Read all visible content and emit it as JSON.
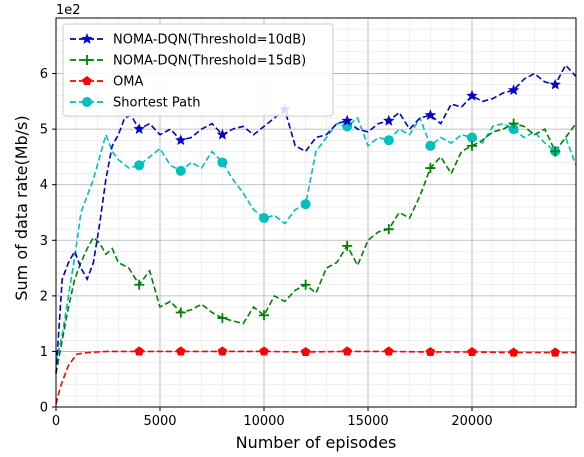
{
  "chart_data": {
    "type": "line",
    "title": "",
    "xlabel": "Number of episodes",
    "ylabel": "Sum of data rate(Mb/s)",
    "y_scale_note": "1e2",
    "xlim": [
      0,
      25000
    ],
    "ylim": [
      0,
      7
    ],
    "x_ticks": [
      0,
      5000,
      10000,
      15000,
      20000
    ],
    "x_tick_labels": [
      "0",
      "5000",
      "10000",
      "15000",
      "20000"
    ],
    "y_ticks": [
      0,
      1,
      2,
      3,
      4,
      5,
      6
    ],
    "y_tick_labels": [
      "0",
      "1",
      "2",
      "3",
      "4",
      "5",
      "6"
    ],
    "grid": true,
    "legend_position": "top-left",
    "series": [
      {
        "name": "NOMA-DQN(Threshold=10dB)",
        "color": "#0000cc",
        "marker": "star",
        "x": [
          0,
          300,
          600,
          900,
          1200,
          1500,
          1800,
          2100,
          2400,
          2700,
          3000,
          3300,
          3600,
          4000,
          4500,
          5000,
          5500,
          6000,
          6500,
          7000,
          7500,
          8000,
          8500,
          9000,
          9500,
          10000,
          10500,
          11000,
          11500,
          12000,
          12500,
          13000,
          13500,
          14000,
          14500,
          15000,
          15500,
          16000,
          16500,
          17000,
          17500,
          18000,
          18500,
          19000,
          19500,
          20000,
          20500,
          21000,
          21500,
          22000,
          22500,
          23000,
          23500,
          24000,
          24500,
          25000
        ],
        "y": [
          0.6,
          2.3,
          2.6,
          2.8,
          2.5,
          2.3,
          2.6,
          3.3,
          4.1,
          4.7,
          4.9,
          5.2,
          5.25,
          5.0,
          5.1,
          4.9,
          5.0,
          4.8,
          4.85,
          5.0,
          5.1,
          4.9,
          5.0,
          5.05,
          4.9,
          5.05,
          5.2,
          5.35,
          4.7,
          4.6,
          4.85,
          4.9,
          5.1,
          5.15,
          5.0,
          4.95,
          5.1,
          5.15,
          5.3,
          5.0,
          5.2,
          5.25,
          5.1,
          5.45,
          5.4,
          5.6,
          5.5,
          5.55,
          5.65,
          5.7,
          5.9,
          6.0,
          5.85,
          5.8,
          6.15,
          5.95
        ],
        "marker_x": [
          4000,
          6000,
          8000,
          11000,
          14000,
          16000,
          18000,
          20000,
          22000,
          24000
        ],
        "marker_y": [
          5.0,
          4.8,
          4.9,
          5.35,
          5.15,
          5.15,
          5.25,
          5.6,
          5.7,
          5.8
        ]
      },
      {
        "name": "NOMA-DQN(Threshold=15dB)",
        "color": "#008000",
        "marker": "plus",
        "x": [
          0,
          300,
          600,
          900,
          1200,
          1500,
          1800,
          2100,
          2400,
          2700,
          3000,
          3500,
          4000,
          4500,
          5000,
          5500,
          6000,
          6500,
          7000,
          7500,
          8000,
          8500,
          9000,
          9500,
          10000,
          10500,
          11000,
          11500,
          12000,
          12500,
          13000,
          13500,
          14000,
          14500,
          15000,
          15500,
          16000,
          16500,
          17000,
          17500,
          18000,
          18500,
          19000,
          19500,
          20000,
          20500,
          21000,
          21500,
          22000,
          22500,
          23000,
          23500,
          24000,
          24500,
          25000
        ],
        "y": [
          0.6,
          1.2,
          1.8,
          2.3,
          2.6,
          2.85,
          3.05,
          2.95,
          2.75,
          2.85,
          2.6,
          2.5,
          2.2,
          2.45,
          1.8,
          1.9,
          1.7,
          1.75,
          1.85,
          1.7,
          1.6,
          1.55,
          1.5,
          1.8,
          1.65,
          2.0,
          1.9,
          2.1,
          2.2,
          2.05,
          2.5,
          2.6,
          2.9,
          2.55,
          3.0,
          3.15,
          3.2,
          3.5,
          3.4,
          3.8,
          4.3,
          4.5,
          4.2,
          4.6,
          4.7,
          4.8,
          4.95,
          5.0,
          5.1,
          5.05,
          4.9,
          5.0,
          4.6,
          4.85,
          5.1
        ],
        "marker_x": [
          4000,
          6000,
          8000,
          10000,
          12000,
          14000,
          16000,
          18000,
          20000,
          22000,
          24000
        ],
        "marker_y": [
          2.2,
          1.7,
          1.6,
          1.65,
          2.2,
          2.9,
          3.2,
          4.3,
          4.7,
          5.1,
          4.6
        ]
      },
      {
        "name": "OMA",
        "color": "#ff0000",
        "marker": "pentagon",
        "x": [
          0,
          200,
          400,
          600,
          800,
          1000,
          1300,
          1600,
          2000,
          2500,
          3000,
          4000,
          5000,
          6000,
          8000,
          10000,
          12000,
          14000,
          16000,
          18000,
          20000,
          22000,
          24000,
          25000
        ],
        "y": [
          0.05,
          0.35,
          0.55,
          0.75,
          0.85,
          0.95,
          0.97,
          0.98,
          0.99,
          1.0,
          1.0,
          1.0,
          1.0,
          1.0,
          1.0,
          1.0,
          0.99,
          1.0,
          1.0,
          0.99,
          0.99,
          0.98,
          0.98,
          0.98
        ],
        "marker_x": [
          4000,
          6000,
          8000,
          10000,
          12000,
          14000,
          16000,
          18000,
          20000,
          22000,
          24000
        ],
        "marker_y": [
          1.0,
          1.0,
          1.0,
          1.0,
          0.99,
          1.0,
          1.0,
          0.99,
          0.99,
          0.98,
          0.98
        ]
      },
      {
        "name": "Shortest Path",
        "color": "#00bfbf",
        "marker": "circle",
        "x": [
          0,
          300,
          600,
          900,
          1200,
          1500,
          1800,
          2100,
          2400,
          2700,
          3000,
          3500,
          4000,
          4500,
          5000,
          5500,
          6000,
          6500,
          7000,
          7500,
          8000,
          8500,
          9000,
          9500,
          10000,
          10500,
          11000,
          11500,
          12000,
          12500,
          13000,
          13500,
          14000,
          14500,
          15000,
          15500,
          16000,
          16500,
          17000,
          17500,
          18000,
          18500,
          19000,
          19500,
          20000,
          20500,
          21000,
          21500,
          22000,
          22500,
          23000,
          23500,
          24000,
          24500,
          25000
        ],
        "y": [
          0.8,
          1.3,
          2.0,
          2.7,
          3.5,
          3.8,
          4.1,
          4.5,
          4.9,
          4.6,
          4.45,
          4.3,
          4.35,
          4.5,
          4.65,
          4.35,
          4.25,
          4.4,
          4.3,
          4.6,
          4.4,
          4.1,
          3.85,
          3.55,
          3.4,
          3.45,
          3.3,
          3.55,
          3.65,
          4.6,
          4.85,
          5.1,
          5.05,
          5.2,
          4.7,
          4.85,
          4.8,
          5.0,
          4.9,
          5.2,
          4.7,
          4.85,
          4.75,
          4.9,
          4.85,
          4.75,
          5.05,
          5.1,
          5.0,
          4.85,
          4.95,
          4.75,
          4.6,
          4.85,
          4.35
        ],
        "marker_x": [
          4000,
          6000,
          8000,
          10000,
          12000,
          14000,
          16000,
          18000,
          20000,
          22000,
          24000
        ],
        "marker_y": [
          4.35,
          4.25,
          4.4,
          3.4,
          3.65,
          5.05,
          4.8,
          4.7,
          4.85,
          5.0,
          4.6
        ]
      }
    ]
  }
}
